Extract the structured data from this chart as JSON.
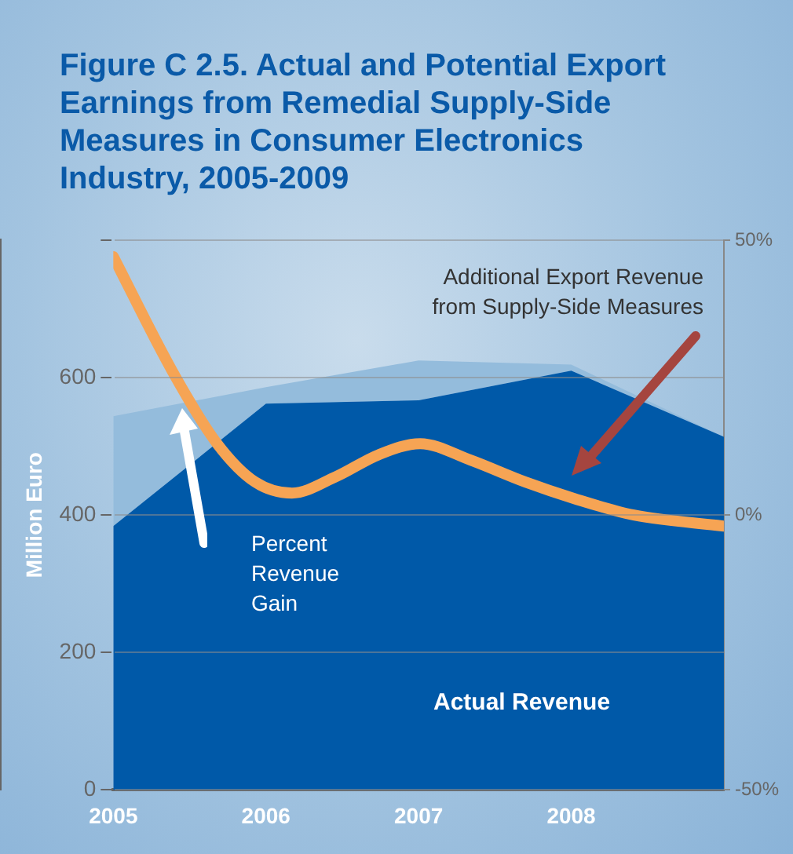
{
  "chart_data": {
    "type": "area",
    "title": "Figure C 2.5. Actual and Potential Export Earnings from Remedial Supply-Side Measures in Consumer Electronics Industry, 2005-2009",
    "ylabel": "Million Euro",
    "stacked": true,
    "grid": "y",
    "x": [
      2005,
      2006,
      2007,
      2008,
      2009
    ],
    "xlim": [
      2005,
      2009
    ],
    "xticks": [
      2005,
      2006,
      2007,
      2008
    ],
    "ylim": [
      0,
      800
    ],
    "yticks": [
      0,
      200,
      400,
      600,
      {
        "value": 800,
        "label": null
      }
    ],
    "y2lim": [
      -50,
      50
    ],
    "y2ticks": [
      {
        "value": -50,
        "label": "-50%"
      },
      {
        "value": 0,
        "label": "0%"
      },
      {
        "value": 50,
        "label": "50%"
      }
    ],
    "series": [
      {
        "name": "Actual Revenue",
        "color": "#0059a8",
        "values": [
          384,
          562,
          567,
          610,
          514
        ]
      },
      {
        "name": "Additional Export Revenue from Supply-Side Measures",
        "color": "#94bcdc",
        "values": [
          160,
          24,
          58,
          9,
          0
        ]
      },
      {
        "name": "Percent Revenue Gain",
        "type": "line",
        "axis": "y2",
        "color": "#f6a454",
        "x": [
          2005,
          2005.39,
          2005.68,
          2005.93,
          2006.17,
          2006.46,
          2006.74,
          2007.01,
          2007.34,
          2007.7,
          2008.02,
          2008.41,
          2009
        ],
        "values": [
          47,
          26,
          13,
          6,
          4,
          7,
          11,
          13,
          10,
          6,
          3,
          0,
          -2
        ]
      }
    ]
  }
}
